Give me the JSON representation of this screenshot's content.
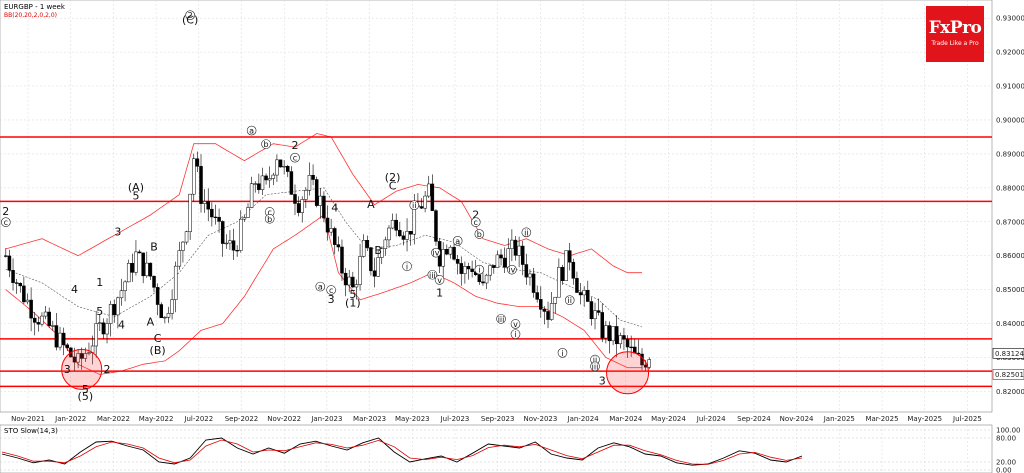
{
  "chart_data": [
    {
      "type": "candlestick",
      "title": "EURGBP - 1 week",
      "indicator_label": "BB(20,20,2,0,2,0)",
      "ylim": [
        0.816,
        0.933
      ],
      "y_ticks": [
        "0.93000",
        "0.92000",
        "0.91000",
        "0.90000",
        "0.89000",
        "0.88000",
        "0.87000",
        "0.86000",
        "0.85000",
        "0.84000",
        "0.83000",
        "0.82000"
      ],
      "x_ticks": [
        "Nov-2021",
        "Jan-2022",
        "Mar-2022",
        "May-2022",
        "Jul-2022",
        "Sep-2022",
        "Nov-2022",
        "Jan-2023",
        "Mar-2023",
        "May-2023",
        "Jul-2023",
        "Sep-2023",
        "Nov-2023",
        "Jan-2024",
        "Mar-2024",
        "May-2024",
        "Jul-2024",
        "Sep-2024",
        "Nov-2024",
        "Jan-2025",
        "Mar-2025",
        "May-2025",
        "Jul-2025"
      ],
      "price_labels": [
        {
          "value": 0.83124,
          "text": "0.83124",
          "color": "#000000"
        },
        {
          "value": 0.82501,
          "text": "0.82501",
          "color": "#e00000"
        }
      ],
      "horizontal_levels": [
        0.895,
        0.876,
        0.8355,
        0.826,
        0.8215
      ],
      "close_anchors": [
        [
          0,
          0.86
        ],
        [
          4,
          0.85
        ],
        [
          8,
          0.843
        ],
        [
          12,
          0.839
        ],
        [
          16,
          0.833
        ],
        [
          20,
          0.828
        ],
        [
          24,
          0.835
        ],
        [
          28,
          0.842
        ],
        [
          32,
          0.85
        ],
        [
          36,
          0.86
        ],
        [
          40,
          0.854
        ],
        [
          44,
          0.841
        ],
        [
          48,
          0.86
        ],
        [
          50,
          0.87
        ],
        [
          52,
          0.889
        ],
        [
          54,
          0.878
        ],
        [
          57,
          0.872
        ],
        [
          60,
          0.864
        ],
        [
          63,
          0.862
        ],
        [
          66,
          0.87
        ],
        [
          69,
          0.882
        ],
        [
          72,
          0.88
        ],
        [
          75,
          0.89
        ],
        [
          78,
          0.882
        ],
        [
          81,
          0.876
        ],
        [
          84,
          0.881
        ],
        [
          87,
          0.876
        ],
        [
          90,
          0.866
        ],
        [
          93,
          0.856
        ],
        [
          96,
          0.85
        ],
        [
          99,
          0.862
        ],
        [
          102,
          0.855
        ],
        [
          105,
          0.866
        ],
        [
          108,
          0.871
        ],
        [
          111,
          0.866
        ],
        [
          114,
          0.874
        ],
        [
          117,
          0.878
        ],
        [
          120,
          0.86
        ],
        [
          123,
          0.865
        ],
        [
          126,
          0.855
        ],
        [
          129,
          0.857
        ],
        [
          132,
          0.85
        ],
        [
          135,
          0.858
        ],
        [
          138,
          0.86
        ],
        [
          141,
          0.862
        ],
        [
          144,
          0.856
        ],
        [
          147,
          0.85
        ],
        [
          150,
          0.843
        ],
        [
          153,
          0.854
        ],
        [
          156,
          0.86
        ],
        [
          159,
          0.848
        ],
        [
          162,
          0.844
        ],
        [
          165,
          0.838
        ],
        [
          168,
          0.836
        ],
        [
          171,
          0.834
        ],
        [
          174,
          0.83
        ],
        [
          176,
          0.828
        ],
        [
          178,
          0.8312
        ]
      ],
      "bollinger_upper": [
        [
          0,
          0.862
        ],
        [
          10,
          0.865
        ],
        [
          20,
          0.86
        ],
        [
          30,
          0.866
        ],
        [
          40,
          0.872
        ],
        [
          48,
          0.878
        ],
        [
          52,
          0.893
        ],
        [
          58,
          0.893
        ],
        [
          66,
          0.888
        ],
        [
          74,
          0.893
        ],
        [
          80,
          0.892
        ],
        [
          86,
          0.896
        ],
        [
          90,
          0.895
        ],
        [
          96,
          0.884
        ],
        [
          102,
          0.875
        ],
        [
          108,
          0.879
        ],
        [
          114,
          0.881
        ],
        [
          120,
          0.88
        ],
        [
          126,
          0.876
        ],
        [
          132,
          0.865
        ],
        [
          138,
          0.863
        ],
        [
          144,
          0.865
        ],
        [
          150,
          0.862
        ],
        [
          156,
          0.86
        ],
        [
          162,
          0.862
        ],
        [
          168,
          0.857
        ],
        [
          172,
          0.855
        ],
        [
          176,
          0.855
        ]
      ],
      "bollinger_lower": [
        [
          0,
          0.85
        ],
        [
          8,
          0.843
        ],
        [
          14,
          0.837
        ],
        [
          20,
          0.828
        ],
        [
          26,
          0.825
        ],
        [
          32,
          0.826
        ],
        [
          38,
          0.828
        ],
        [
          44,
          0.829
        ],
        [
          48,
          0.832
        ],
        [
          54,
          0.838
        ],
        [
          60,
          0.84
        ],
        [
          66,
          0.848
        ],
        [
          74,
          0.862
        ],
        [
          80,
          0.866
        ],
        [
          84,
          0.869
        ],
        [
          88,
          0.872
        ],
        [
          92,
          0.855
        ],
        [
          98,
          0.847
        ],
        [
          104,
          0.849
        ],
        [
          112,
          0.852
        ],
        [
          118,
          0.855
        ],
        [
          124,
          0.852
        ],
        [
          130,
          0.848
        ],
        [
          136,
          0.846
        ],
        [
          142,
          0.845
        ],
        [
          148,
          0.845
        ],
        [
          154,
          0.842
        ],
        [
          160,
          0.838
        ],
        [
          166,
          0.83
        ],
        [
          172,
          0.827
        ],
        [
          176,
          0.827
        ]
      ],
      "bollinger_middle": [
        [
          0,
          0.856
        ],
        [
          10,
          0.852
        ],
        [
          20,
          0.845
        ],
        [
          30,
          0.842
        ],
        [
          40,
          0.848
        ],
        [
          48,
          0.855
        ],
        [
          56,
          0.866
        ],
        [
          64,
          0.87
        ],
        [
          72,
          0.878
        ],
        [
          80,
          0.879
        ],
        [
          88,
          0.88
        ],
        [
          94,
          0.87
        ],
        [
          100,
          0.862
        ],
        [
          108,
          0.863
        ],
        [
          116,
          0.866
        ],
        [
          124,
          0.864
        ],
        [
          132,
          0.858
        ],
        [
          140,
          0.856
        ],
        [
          148,
          0.855
        ],
        [
          156,
          0.851
        ],
        [
          164,
          0.847
        ],
        [
          170,
          0.841
        ],
        [
          176,
          0.839
        ]
      ],
      "wave_labels": [
        {
          "text": "2",
          "i": 0,
          "y": 0.872,
          "size": "lg"
        },
        {
          "text": "c",
          "i": 0,
          "y": 0.869,
          "size": "circ"
        },
        {
          "text": "(A)",
          "i": 36,
          "y": 0.879,
          "size": "lg"
        },
        {
          "text": "5",
          "i": 36,
          "y": 0.8765,
          "size": "lg"
        },
        {
          "text": "3",
          "i": 31,
          "y": 0.866,
          "size": "lg"
        },
        {
          "text": "B",
          "i": 41,
          "y": 0.8615,
          "size": "lg"
        },
        {
          "text": "4",
          "i": 19,
          "y": 0.849,
          "size": "lg"
        },
        {
          "text": "1",
          "i": 26,
          "y": 0.851,
          "size": "lg"
        },
        {
          "text": "4",
          "i": 32,
          "y": 0.8385,
          "size": "lg"
        },
        {
          "text": "A",
          "i": 40,
          "y": 0.8395,
          "size": "lg"
        },
        {
          "text": "C",
          "i": 42,
          "y": 0.8345,
          "size": "lg"
        },
        {
          "text": "(B)",
          "i": 42,
          "y": 0.831,
          "size": "lg"
        },
        {
          "text": "5",
          "i": 26,
          "y": 0.8425,
          "size": "lg"
        },
        {
          "text": "3",
          "i": 17,
          "y": 0.8255,
          "size": "lg"
        },
        {
          "text": "2",
          "i": 28,
          "y": 0.8255,
          "size": "lg"
        },
        {
          "text": "5",
          "i": 22,
          "y": 0.8195,
          "size": "lg"
        },
        {
          "text": "(5)",
          "i": 22,
          "y": 0.8175,
          "size": "lg"
        },
        {
          "text": "2",
          "i": 51,
          "y": 0.93,
          "size": "circ"
        },
        {
          "text": "(C)",
          "i": 51,
          "y": 0.9285,
          "size": "lg"
        },
        {
          "text": "a",
          "i": 68,
          "y": 0.896,
          "size": "circ"
        },
        {
          "text": "b",
          "i": 72,
          "y": 0.892,
          "size": "circ"
        },
        {
          "text": "2",
          "i": 80,
          "y": 0.8915,
          "size": "lg"
        },
        {
          "text": "c",
          "i": 80,
          "y": 0.888,
          "size": "circ"
        },
        {
          "text": "c",
          "i": 73,
          "y": 0.872,
          "size": "circ"
        },
        {
          "text": "b",
          "i": 73,
          "y": 0.87,
          "size": "circ"
        },
        {
          "text": "4",
          "i": 91,
          "y": 0.873,
          "size": "lg"
        },
        {
          "text": "a",
          "i": 87,
          "y": 0.85,
          "size": "circ"
        },
        {
          "text": "c",
          "i": 90,
          "y": 0.849,
          "size": "circ"
        },
        {
          "text": "3",
          "i": 90,
          "y": 0.846,
          "size": "lg"
        },
        {
          "text": "5",
          "i": 96,
          "y": 0.8475,
          "size": "lg"
        },
        {
          "text": "(1)",
          "i": 96,
          "y": 0.845,
          "size": "lg"
        },
        {
          "text": "A",
          "i": 101,
          "y": 0.874,
          "size": "lg"
        },
        {
          "text": "B",
          "i": 103,
          "y": 0.8605,
          "size": "lg"
        },
        {
          "text": "(2)",
          "i": 107,
          "y": 0.882,
          "size": "lg"
        },
        {
          "text": "C",
          "i": 107,
          "y": 0.8795,
          "size": "lg"
        },
        {
          "text": "ii",
          "i": 113,
          "y": 0.874,
          "size": "circ"
        },
        {
          "text": "iv",
          "i": 119,
          "y": 0.86,
          "size": "circ"
        },
        {
          "text": "iii",
          "i": 118,
          "y": 0.8535,
          "size": "circ"
        },
        {
          "text": "v",
          "i": 120,
          "y": 0.852,
          "size": "circ"
        },
        {
          "text": "i",
          "i": 111,
          "y": 0.856,
          "size": "circ"
        },
        {
          "text": "1",
          "i": 120,
          "y": 0.848,
          "size": "lg"
        },
        {
          "text": "a",
          "i": 125,
          "y": 0.8635,
          "size": "circ"
        },
        {
          "text": "2",
          "i": 130,
          "y": 0.871,
          "size": "lg"
        },
        {
          "text": "c",
          "i": 130,
          "y": 0.869,
          "size": "circ"
        },
        {
          "text": "b",
          "i": 131,
          "y": 0.8655,
          "size": "circ"
        },
        {
          "text": "i",
          "i": 131,
          "y": 0.855,
          "size": "circ"
        },
        {
          "text": "ii",
          "i": 144,
          "y": 0.866,
          "size": "circ"
        },
        {
          "text": "iv",
          "i": 140,
          "y": 0.855,
          "size": "circ"
        },
        {
          "text": "iii",
          "i": 137,
          "y": 0.8405,
          "size": "circ"
        },
        {
          "text": "v",
          "i": 141,
          "y": 0.839,
          "size": "circ"
        },
        {
          "text": "i",
          "i": 141,
          "y": 0.836,
          "size": "circ"
        },
        {
          "text": "ii",
          "i": 156,
          "y": 0.846,
          "size": "circ"
        },
        {
          "text": "i",
          "i": 154,
          "y": 0.8305,
          "size": "circ"
        },
        {
          "text": "ii",
          "i": 163,
          "y": 0.8285,
          "size": "circ"
        },
        {
          "text": "iii",
          "i": 163,
          "y": 0.8265,
          "size": "circ"
        },
        {
          "text": "3",
          "i": 165,
          "y": 0.822,
          "size": "lg"
        }
      ]
    },
    {
      "type": "line",
      "title": "STO Slow(14,3)",
      "ylim": [
        0,
        100
      ],
      "y_ticks": [
        "100.00",
        "80.00",
        "20.00",
        "0.00"
      ],
      "series": [
        {
          "name": "",
          "color": "#000000",
          "values": [
            40,
            30,
            18,
            25,
            15,
            45,
            70,
            72,
            60,
            50,
            20,
            15,
            30,
            75,
            80,
            55,
            40,
            55,
            42,
            65,
            72,
            60,
            50,
            68,
            80,
            45,
            20,
            28,
            35,
            20,
            42,
            65,
            60,
            55,
            70,
            40,
            30,
            25,
            55,
            68,
            58,
            40,
            35,
            18,
            12,
            15,
            30,
            48,
            42,
            25,
            20,
            35
          ]
        },
        {
          "name": "",
          "color": "#e00000",
          "values": [
            45,
            35,
            22,
            22,
            18,
            35,
            58,
            70,
            65,
            55,
            30,
            18,
            25,
            60,
            75,
            65,
            45,
            50,
            48,
            58,
            68,
            64,
            55,
            62,
            74,
            58,
            30,
            26,
            32,
            26,
            36,
            56,
            62,
            58,
            64,
            50,
            36,
            28,
            45,
            62,
            62,
            48,
            38,
            24,
            15,
            14,
            24,
            40,
            44,
            32,
            24,
            30
          ]
        }
      ]
    }
  ],
  "brand": {
    "name": "FxPro",
    "tagline": "Trade Like a Pro"
  },
  "colors": {
    "up": "#ffffff",
    "down": "#000000",
    "level": "#ff0000",
    "band": "#ff3333",
    "mid": "#555555",
    "accent": "#e1141c"
  }
}
